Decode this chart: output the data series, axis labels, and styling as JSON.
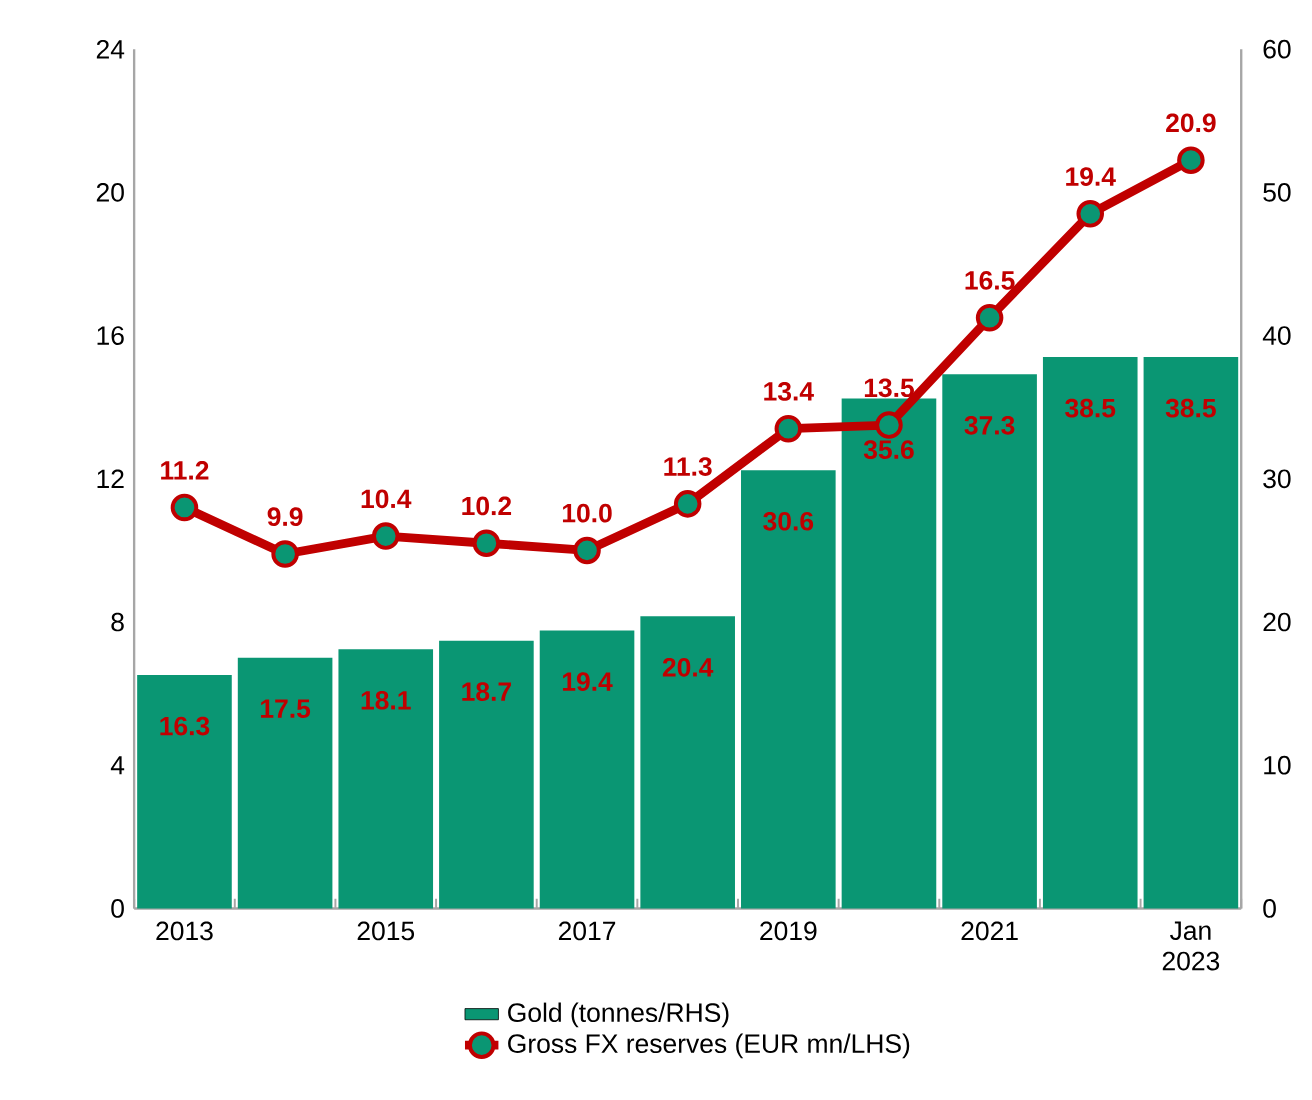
{
  "chart_data": {
    "type": "bar",
    "categories": [
      "2013",
      null,
      "2015",
      null,
      "2017",
      null,
      "2019",
      null,
      "2021",
      null,
      "Jan 2023"
    ],
    "series": [
      {
        "name": "Gold (tonnes/RHS)",
        "axis": "y2",
        "color": "#0a9673",
        "values": [
          16.3,
          17.5,
          18.1,
          18.7,
          19.4,
          20.4,
          30.6,
          35.6,
          37.3,
          38.5,
          38.5
        ]
      },
      {
        "name": "Gross FX reserves (EUR mn/LHS)",
        "type": "line",
        "axis": "y",
        "color": "#c00000",
        "marker": "circle",
        "line_style": "solid",
        "values": [
          11.2,
          9.9,
          10.4,
          10.2,
          10.0,
          11.3,
          13.4,
          13.5,
          16.5,
          19.4,
          20.9
        ],
        "value_labels": [
          "11.2",
          "9.9",
          "10.4",
          "10.2",
          "10.0",
          "11.3",
          "13.4",
          "13.5",
          "16.5",
          "19.4",
          "20.9"
        ]
      }
    ],
    "ylim": [
      0,
      24
    ],
    "yticks": [
      0,
      4,
      8,
      12,
      16,
      20,
      24
    ],
    "y2lim": [
      0,
      60
    ],
    "y2ticks": [
      0,
      10,
      20,
      30,
      40,
      50,
      60
    ],
    "data_labels": true,
    "legend": "bottom",
    "grid": false
  }
}
